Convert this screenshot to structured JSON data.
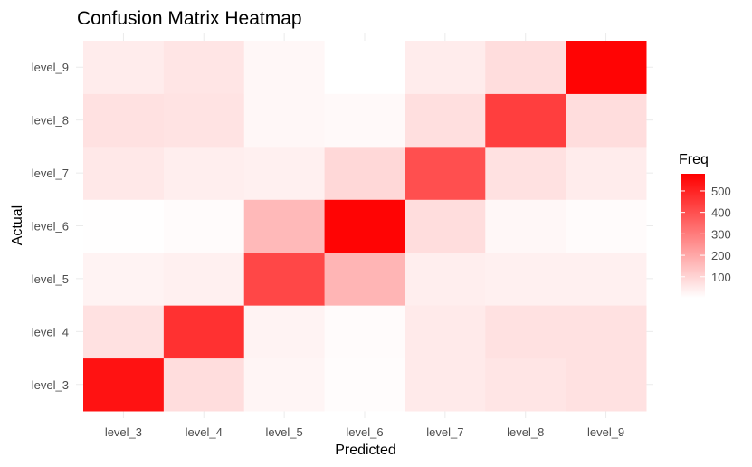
{
  "chart_data": {
    "type": "heatmap",
    "title": "Confusion Matrix Heatmap",
    "xlabel": "Predicted",
    "ylabel": "Actual",
    "x_categories": [
      "level_3",
      "level_4",
      "level_5",
      "level_6",
      "level_7",
      "level_8",
      "level_9"
    ],
    "y_categories": [
      "level_3",
      "level_4",
      "level_5",
      "level_6",
      "level_7",
      "level_8",
      "level_9"
    ],
    "values": [
      [
        540,
        80,
        25,
        8,
        50,
        60,
        70
      ],
      [
        70,
        470,
        30,
        12,
        50,
        70,
        70
      ],
      [
        30,
        35,
        420,
        170,
        40,
        35,
        35
      ],
      [
        5,
        10,
        160,
        570,
        80,
        20,
        10
      ],
      [
        55,
        40,
        35,
        90,
        400,
        70,
        45
      ],
      [
        70,
        65,
        20,
        15,
        75,
        440,
        80
      ],
      [
        45,
        60,
        20,
        2,
        45,
        80,
        570
      ]
    ],
    "legend": {
      "title": "Freq",
      "ticks": [
        100,
        200,
        300,
        400,
        500
      ],
      "min": 2,
      "max": 580,
      "low_color": "#ffffff",
      "high_color": "#ff0000"
    },
    "grid": true,
    "legend_position": "right"
  }
}
